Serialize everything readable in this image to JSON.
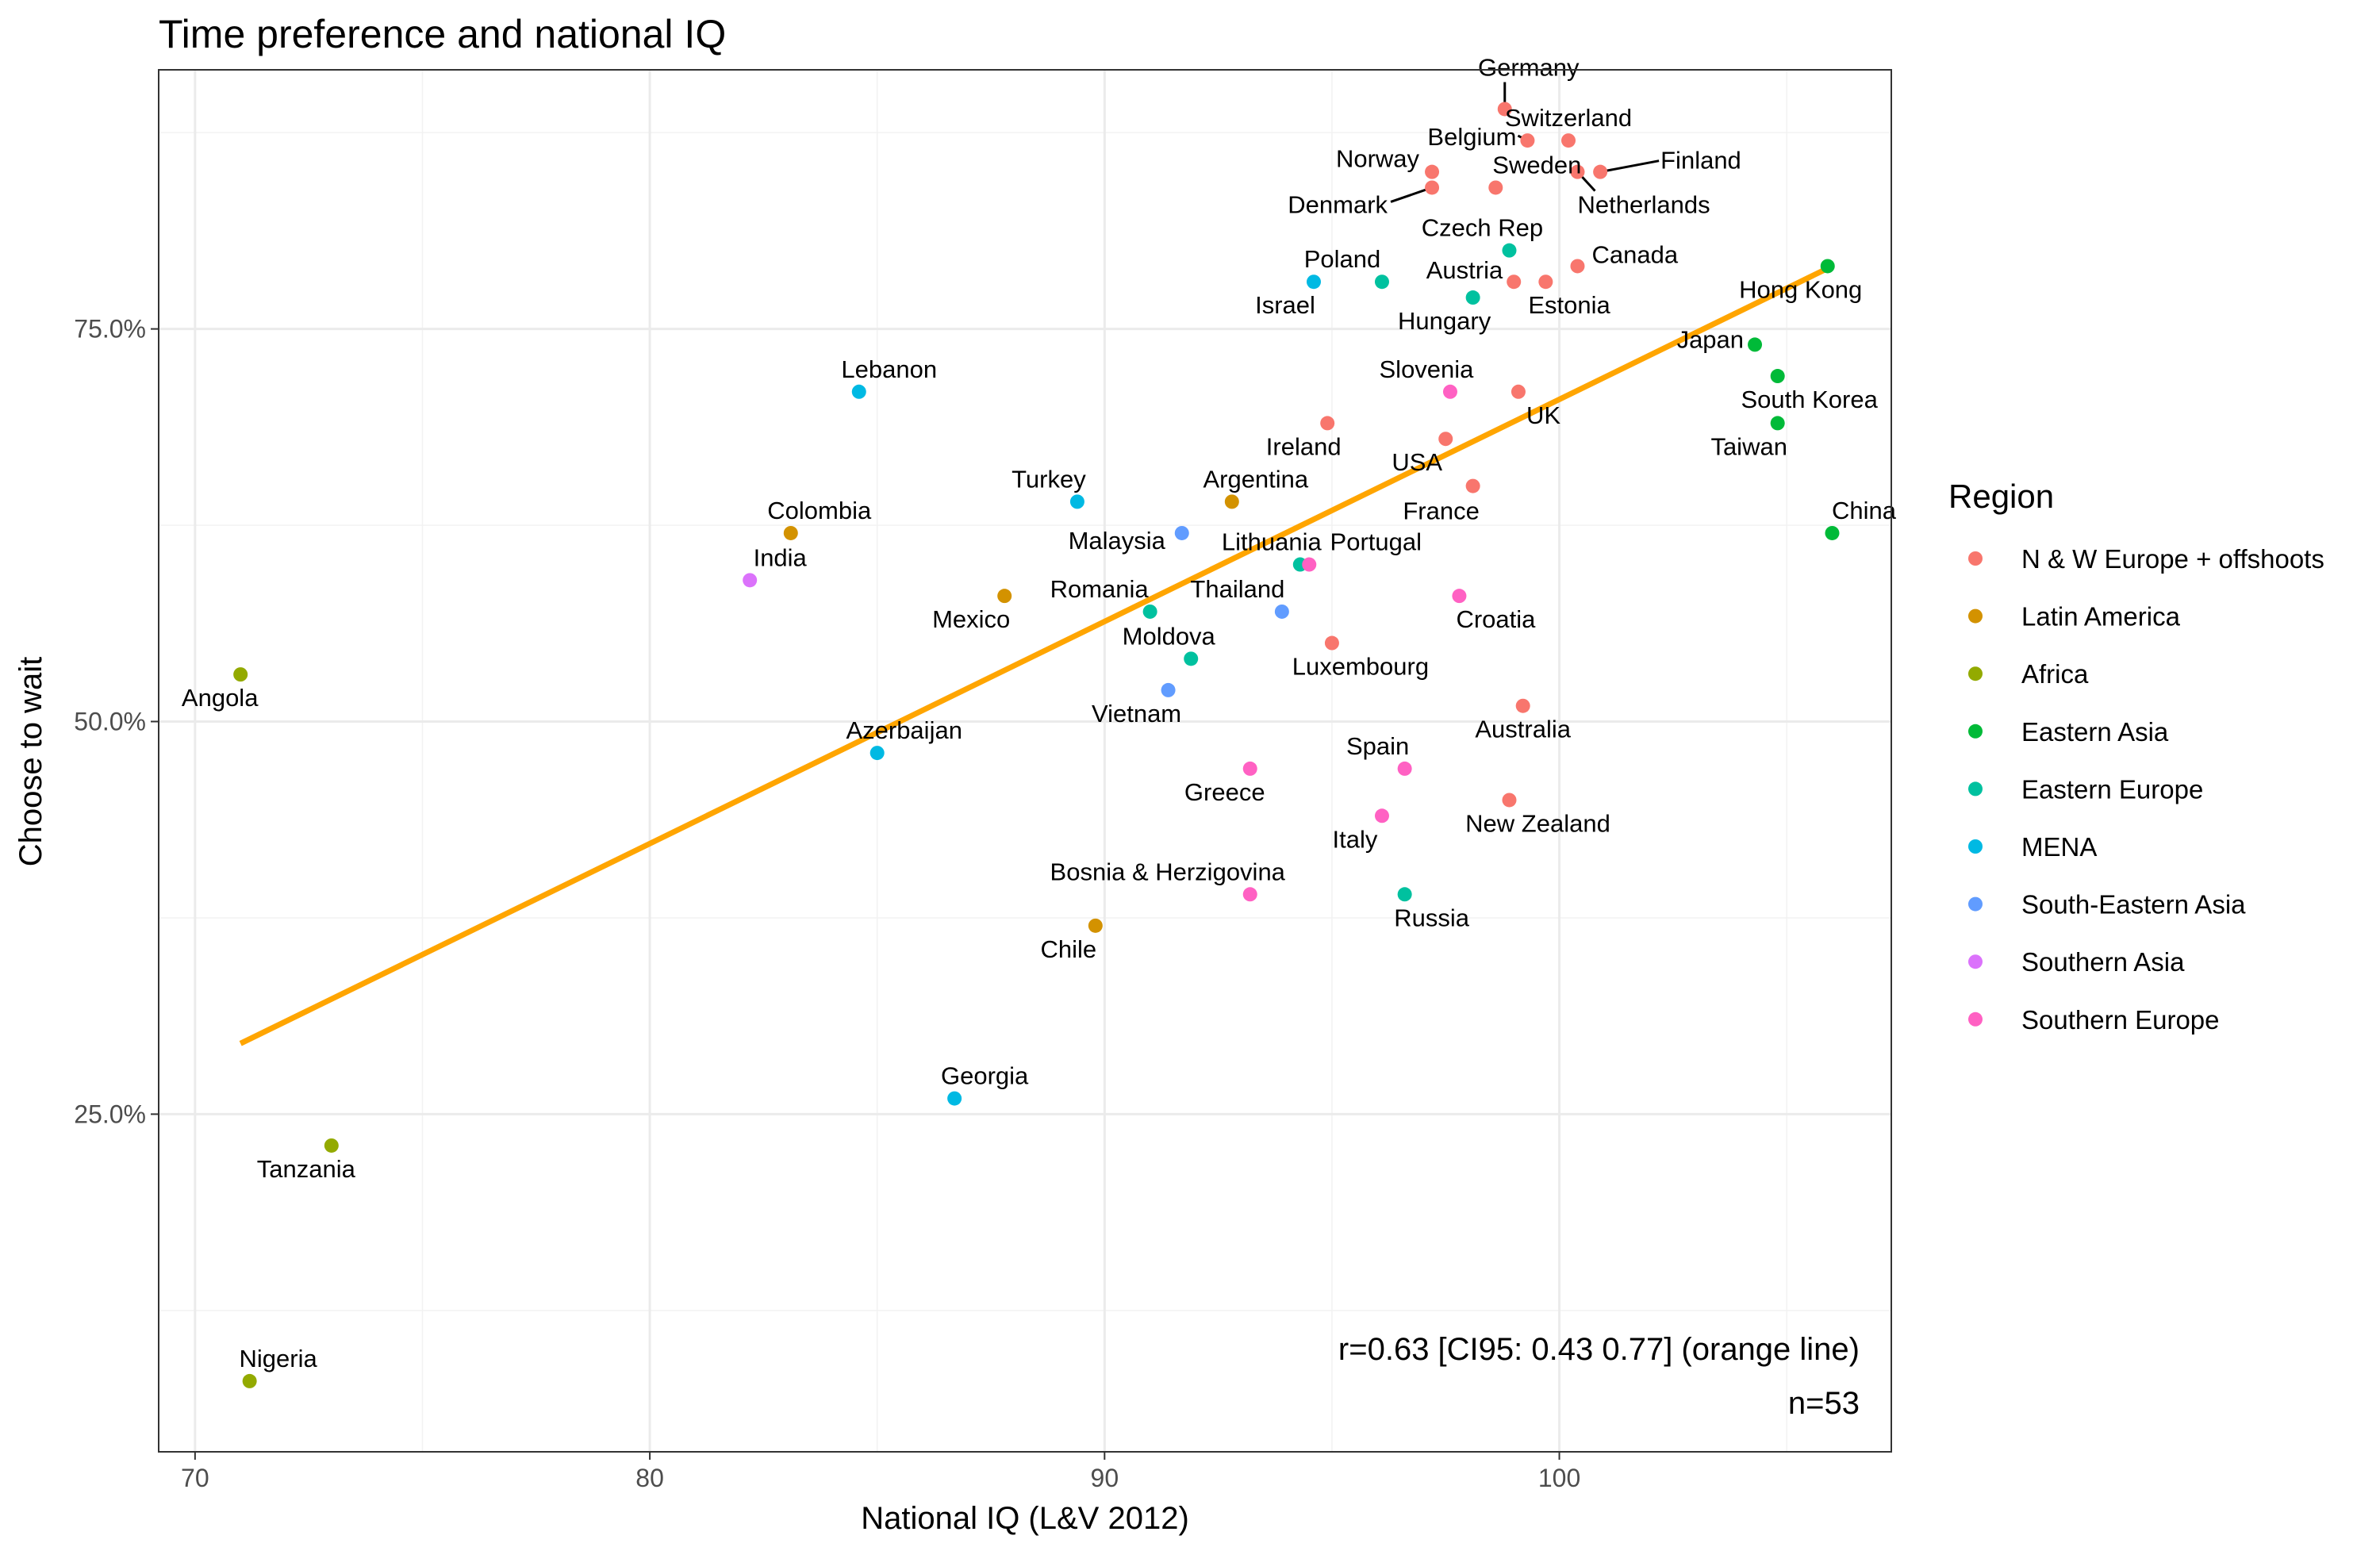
{
  "chart_data": {
    "type": "scatter",
    "title": "Time preference and national IQ",
    "xlabel": "National IQ (L&V 2012)",
    "ylabel": "Choose to wait",
    "xlim": [
      69.2,
      107.3
    ],
    "ylim": [
      0.035,
      0.915
    ],
    "x_ticks": [
      70,
      80,
      90,
      100
    ],
    "x_tick_labels": [
      "70",
      "80",
      "90",
      "100"
    ],
    "y_ticks": [
      0.25,
      0.5,
      0.75
    ],
    "y_tick_labels": [
      "25.0%",
      "50.0%",
      "75.0%"
    ],
    "grid": true,
    "legend": {
      "title": "Region",
      "position": "right",
      "entries": [
        {
          "label": "N & W Europe + offshoots",
          "color": "#F8766D"
        },
        {
          "label": "Latin America",
          "color": "#D39200"
        },
        {
          "label": "Africa",
          "color": "#93AA00"
        },
        {
          "label": "Eastern Asia",
          "color": "#00BA38"
        },
        {
          "label": "Eastern Europe",
          "color": "#00C19F"
        },
        {
          "label": "MENA",
          "color": "#00B9E3"
        },
        {
          "label": "South-Eastern Asia",
          "color": "#619CFF"
        },
        {
          "label": "Southern Asia",
          "color": "#DB72FB"
        },
        {
          "label": "Southern Europe",
          "color": "#FF61C3"
        }
      ]
    },
    "fit_line": {
      "color": "#FFA500",
      "x": [
        71.0,
        106.0
      ],
      "y": [
        0.295,
        0.79
      ]
    },
    "annotations": [
      "r=0.63 [CI95: 0.43 0.77] (orange line)",
      "n=53"
    ],
    "points": [
      {
        "label": "Germany",
        "x": 98.8,
        "y": 0.89,
        "region": "N & W Europe + offshoots"
      },
      {
        "label": "Belgium",
        "x": 99.3,
        "y": 0.87,
        "region": "N & W Europe + offshoots"
      },
      {
        "label": "Switzerland",
        "x": 100.2,
        "y": 0.87,
        "region": "N & W Europe + offshoots"
      },
      {
        "label": "Finland",
        "x": 100.9,
        "y": 0.85,
        "region": "N & W Europe + offshoots"
      },
      {
        "label": "Netherlands",
        "x": 100.4,
        "y": 0.85,
        "region": "N & W Europe + offshoots"
      },
      {
        "label": "Norway",
        "x": 97.2,
        "y": 0.85,
        "region": "N & W Europe + offshoots"
      },
      {
        "label": "Denmark",
        "x": 97.2,
        "y": 0.84,
        "region": "N & W Europe + offshoots"
      },
      {
        "label": "Sweden",
        "x": 98.6,
        "y": 0.84,
        "region": "N & W Europe + offshoots"
      },
      {
        "label": "Canada",
        "x": 100.4,
        "y": 0.79,
        "region": "N & W Europe + offshoots"
      },
      {
        "label": "Austria",
        "x": 99.0,
        "y": 0.78,
        "region": "N & W Europe + offshoots"
      },
      {
        "label": "Estonia",
        "x": 99.7,
        "y": 0.78,
        "region": "N & W Europe + offshoots"
      },
      {
        "label": "UK",
        "x": 99.1,
        "y": 0.71,
        "region": "N & W Europe + offshoots"
      },
      {
        "label": "Ireland",
        "x": 94.9,
        "y": 0.69,
        "region": "N & W Europe + offshoots"
      },
      {
        "label": "USA",
        "x": 97.5,
        "y": 0.68,
        "region": "N & W Europe + offshoots"
      },
      {
        "label": "France",
        "x": 98.1,
        "y": 0.65,
        "region": "N & W Europe + offshoots"
      },
      {
        "label": "Luxembourg",
        "x": 95.0,
        "y": 0.55,
        "region": "N & W Europe + offshoots"
      },
      {
        "label": "Australia",
        "x": 99.2,
        "y": 0.51,
        "region": "N & W Europe + offshoots"
      },
      {
        "label": "New Zealand",
        "x": 98.9,
        "y": 0.45,
        "region": "N & W Europe + offshoots"
      },
      {
        "label": "Colombia",
        "x": 83.1,
        "y": 0.62,
        "region": "Latin America"
      },
      {
        "label": "Argentina",
        "x": 92.8,
        "y": 0.64,
        "region": "Latin America"
      },
      {
        "label": "Mexico",
        "x": 87.8,
        "y": 0.58,
        "region": "Latin America"
      },
      {
        "label": "Chile",
        "x": 89.8,
        "y": 0.37,
        "region": "Latin America"
      },
      {
        "label": "Angola",
        "x": 71.0,
        "y": 0.53,
        "region": "Africa"
      },
      {
        "label": "Tanzania",
        "x": 73.0,
        "y": 0.23,
        "region": "Africa"
      },
      {
        "label": "Nigeria",
        "x": 71.2,
        "y": 0.08,
        "region": "Africa"
      },
      {
        "label": "Hong Kong",
        "x": 105.9,
        "y": 0.79,
        "region": "Eastern Asia"
      },
      {
        "label": "Japan",
        "x": 104.3,
        "y": 0.74,
        "region": "Eastern Asia"
      },
      {
        "label": "South Korea",
        "x": 104.8,
        "y": 0.72,
        "region": "Eastern Asia"
      },
      {
        "label": "Taiwan",
        "x": 104.8,
        "y": 0.69,
        "region": "Eastern Asia"
      },
      {
        "label": "China",
        "x": 106.0,
        "y": 0.62,
        "region": "Eastern Asia"
      },
      {
        "label": "Czech Rep",
        "x": 98.9,
        "y": 0.8,
        "region": "Eastern Europe"
      },
      {
        "label": "Poland",
        "x": 96.1,
        "y": 0.78,
        "region": "Eastern Europe"
      },
      {
        "label": "Hungary",
        "x": 98.1,
        "y": 0.77,
        "region": "Eastern Europe"
      },
      {
        "label": "Lithuania",
        "x": 94.3,
        "y": 0.6,
        "region": "Eastern Europe"
      },
      {
        "label": "Romania",
        "x": 91.0,
        "y": 0.57,
        "region": "Eastern Europe"
      },
      {
        "label": "Moldova",
        "x": 91.9,
        "y": 0.54,
        "region": "Eastern Europe"
      },
      {
        "label": "Russia",
        "x": 96.6,
        "y": 0.39,
        "region": "Eastern Europe"
      },
      {
        "label": "Israel",
        "x": 94.6,
        "y": 0.78,
        "region": "MENA"
      },
      {
        "label": "Lebanon",
        "x": 84.6,
        "y": 0.71,
        "region": "MENA"
      },
      {
        "label": "Turkey",
        "x": 89.4,
        "y": 0.64,
        "region": "MENA"
      },
      {
        "label": "Azerbaijan",
        "x": 85.0,
        "y": 0.48,
        "region": "MENA"
      },
      {
        "label": "Georgia",
        "x": 86.7,
        "y": 0.26,
        "region": "MENA"
      },
      {
        "label": "Malaysia",
        "x": 91.7,
        "y": 0.62,
        "region": "South-Eastern Asia"
      },
      {
        "label": "Thailand",
        "x": 93.9,
        "y": 0.57,
        "region": "South-Eastern Asia"
      },
      {
        "label": "Vietnam",
        "x": 91.4,
        "y": 0.52,
        "region": "South-Eastern Asia"
      },
      {
        "label": "India",
        "x": 82.2,
        "y": 0.59,
        "region": "Southern Asia"
      },
      {
        "label": "Slovenia",
        "x": 97.6,
        "y": 0.71,
        "region": "Southern Europe"
      },
      {
        "label": "Portugal",
        "x": 94.5,
        "y": 0.6,
        "region": "Southern Europe"
      },
      {
        "label": "Croatia",
        "x": 97.8,
        "y": 0.58,
        "region": "Southern Europe"
      },
      {
        "label": "Spain",
        "x": 96.6,
        "y": 0.47,
        "region": "Southern Europe"
      },
      {
        "label": "Greece",
        "x": 93.2,
        "y": 0.47,
        "region": "Southern Europe"
      },
      {
        "label": "Italy",
        "x": 96.1,
        "y": 0.44,
        "region": "Southern Europe"
      },
      {
        "label": "Bosnia & Herzigovina",
        "x": 93.2,
        "y": 0.39,
        "region": "Southern Europe"
      }
    ]
  }
}
